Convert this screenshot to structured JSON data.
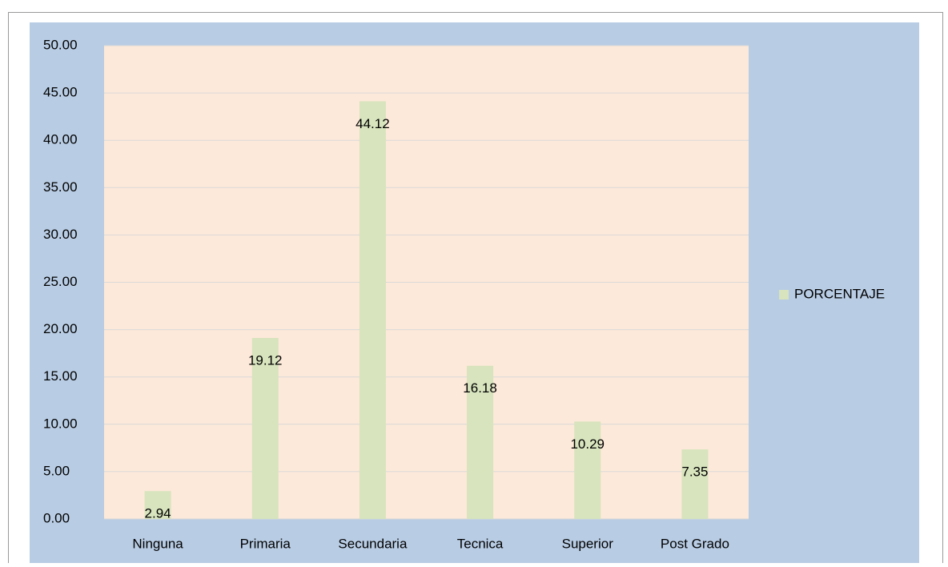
{
  "chart_data": {
    "type": "bar",
    "categories": [
      "Ninguna",
      "Primaria",
      "Secundaria",
      "Tecnica",
      "Superior",
      "Post Grado"
    ],
    "series": [
      {
        "name": "PORCENTAJE",
        "color": "#d7e4bd",
        "values": [
          2.94,
          19.12,
          44.12,
          16.18,
          10.29,
          7.35
        ]
      }
    ],
    "ylim": [
      0,
      50
    ],
    "yticks": [
      {
        "value": 0,
        "label": "0.00"
      },
      {
        "value": 5,
        "label": "5.00"
      },
      {
        "value": 10,
        "label": "10.00"
      },
      {
        "value": 15,
        "label": "15.00"
      },
      {
        "value": 20,
        "label": "20.00"
      },
      {
        "value": 25,
        "label": "25.00"
      },
      {
        "value": 30,
        "label": "30.00"
      },
      {
        "value": 35,
        "label": "35.00"
      },
      {
        "value": 40,
        "label": "40.00"
      },
      {
        "value": 45,
        "label": "45.00"
      },
      {
        "value": 50,
        "label": "50.00"
      }
    ],
    "grid": true,
    "legend": "right"
  }
}
